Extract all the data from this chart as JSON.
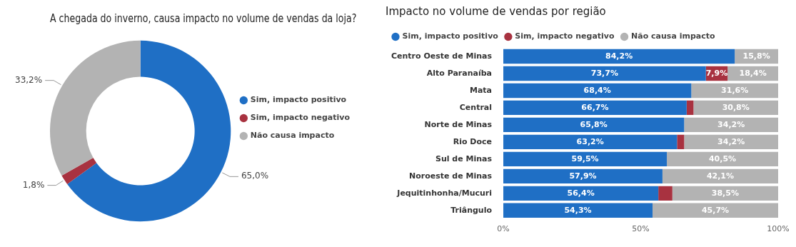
{
  "chart_data": [
    {
      "type": "donut",
      "title": "A chegada do inverno, causa impacto no volume de vendas da loja?",
      "categories": [
        "Sim, impacto positivo",
        "Sim, impacto negativo",
        "Não causa impacto"
      ],
      "values": [
        65.0,
        1.8,
        33.2
      ],
      "value_labels": [
        "65,0%",
        "1,8%",
        "33,2%"
      ],
      "colors": [
        "#1f6fc5",
        "#a83240",
        "#b3b3b3"
      ],
      "legend": "right"
    },
    {
      "type": "bar",
      "title": "Impacto no volume de vendas por região",
      "orientation": "horizontal",
      "stacked": true,
      "legend": "top left",
      "grid": false,
      "categories": [
        "Centro Oeste de Minas",
        "Alto Paranaíba",
        "Mata",
        "Central",
        "Norte de Minas",
        "Rio Doce",
        "Sul de Minas",
        "Noroeste de Minas",
        "Jequitinhonha/Mucuri",
        "Triângulo"
      ],
      "series": [
        {
          "name": "Sim, impacto positivo",
          "color": "#1f6fc5",
          "values": [
            84.2,
            73.7,
            68.4,
            66.7,
            65.8,
            63.2,
            59.5,
            57.9,
            56.4,
            54.3
          ],
          "value_labels": [
            "84,2%",
            "73,7%",
            "68,4%",
            "66,7%",
            "65,8%",
            "63,2%",
            "59,5%",
            "57,9%",
            "56,4%",
            "54,3%"
          ]
        },
        {
          "name": "Sim, impacto negativo",
          "color": "#a83240",
          "values": [
            0,
            7.9,
            0,
            2.5,
            0,
            2.6,
            0,
            0,
            5.1,
            0
          ],
          "value_labels": [
            null,
            "7,9%",
            null,
            null,
            null,
            null,
            null,
            null,
            null,
            null
          ]
        },
        {
          "name": "Não causa impacto",
          "color": "#b3b3b3",
          "values": [
            15.8,
            18.4,
            31.6,
            30.8,
            34.2,
            34.2,
            40.5,
            42.1,
            38.5,
            45.7
          ],
          "value_labels": [
            "15,8%",
            "18,4%",
            "31,6%",
            "30,8%",
            "34,2%",
            "34,2%",
            "40,5%",
            "42,1%",
            "38,5%",
            "45,7%"
          ]
        }
      ],
      "xlim": [
        0,
        100
      ],
      "xticks": [
        {
          "value": 0,
          "label": "0%"
        },
        {
          "value": 50,
          "label": "50%"
        },
        {
          "value": 100,
          "label": "100%"
        }
      ]
    }
  ]
}
